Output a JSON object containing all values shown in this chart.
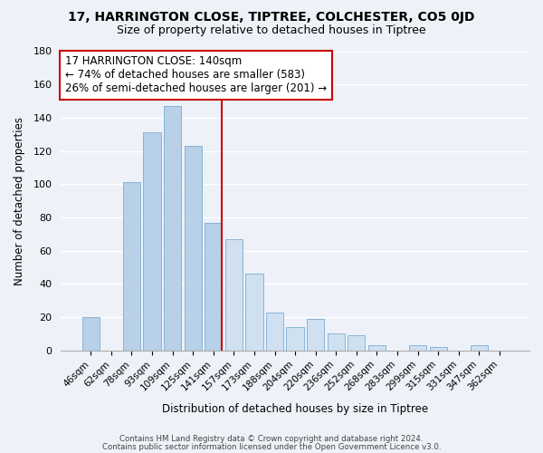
{
  "title": "17, HARRINGTON CLOSE, TIPTREE, COLCHESTER, CO5 0JD",
  "subtitle": "Size of property relative to detached houses in Tiptree",
  "xlabel": "Distribution of detached houses by size in Tiptree",
  "ylabel": "Number of detached properties",
  "bar_labels": [
    "46sqm",
    "62sqm",
    "78sqm",
    "93sqm",
    "109sqm",
    "125sqm",
    "141sqm",
    "157sqm",
    "173sqm",
    "188sqm",
    "204sqm",
    "220sqm",
    "236sqm",
    "252sqm",
    "268sqm",
    "283sqm",
    "299sqm",
    "315sqm",
    "331sqm",
    "347sqm",
    "362sqm"
  ],
  "bar_heights": [
    20,
    0,
    101,
    131,
    147,
    123,
    77,
    67,
    46,
    23,
    14,
    19,
    10,
    9,
    3,
    0,
    3,
    2,
    0,
    3,
    0
  ],
  "bar_color_left": "#b8d0e8",
  "bar_color_right": "#cfe0f0",
  "bar_edge_color": "#7aadd4",
  "vline_idx": 6,
  "vline_color": "#cc0000",
  "ylim": [
    0,
    180
  ],
  "yticks": [
    0,
    20,
    40,
    60,
    80,
    100,
    120,
    140,
    160,
    180
  ],
  "annotation_title": "17 HARRINGTON CLOSE: 140sqm",
  "annotation_line1": "← 74% of detached houses are smaller (583)",
  "annotation_line2": "26% of semi-detached houses are larger (201) →",
  "footer1": "Contains HM Land Registry data © Crown copyright and database right 2024.",
  "footer2": "Contains public sector information licensed under the Open Government Licence v3.0.",
  "bg_color": "#eef2f8",
  "grid_color": "#ffffff",
  "annotation_box_facecolor": "#ffffff",
  "annotation_box_edgecolor": "#cc0000"
}
